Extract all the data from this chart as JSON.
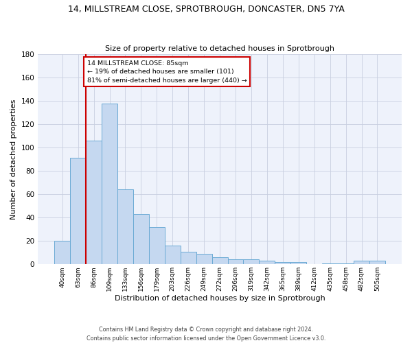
{
  "title_line1": "14, MILLSTREAM CLOSE, SPROTBROUGH, DONCASTER, DN5 7YA",
  "title_line2": "Size of property relative to detached houses in Sprotbrough",
  "xlabel": "Distribution of detached houses by size in Sprotbrough",
  "ylabel": "Number of detached properties",
  "categories": [
    "40sqm",
    "63sqm",
    "86sqm",
    "109sqm",
    "133sqm",
    "156sqm",
    "179sqm",
    "203sqm",
    "226sqm",
    "249sqm",
    "272sqm",
    "296sqm",
    "319sqm",
    "342sqm",
    "365sqm",
    "389sqm",
    "412sqm",
    "435sqm",
    "458sqm",
    "482sqm",
    "505sqm"
  ],
  "values": [
    20,
    91,
    106,
    138,
    64,
    43,
    32,
    16,
    11,
    9,
    6,
    4,
    4,
    3,
    2,
    2,
    0,
    1,
    1,
    3,
    3
  ],
  "bar_color": "#c5d8f0",
  "bar_edge_color": "#6aaad4",
  "subject_bar_index": 2,
  "subject_label": "14 MILLSTREAM CLOSE: 85sqm",
  "annotation_line1": "← 19% of detached houses are smaller (101)",
  "annotation_line2": "81% of semi-detached houses are larger (440) →",
  "annotation_box_color": "#ffffff",
  "annotation_box_edge_color": "#cc0000",
  "subject_line_color": "#cc0000",
  "ylim": [
    0,
    180
  ],
  "yticks": [
    0,
    20,
    40,
    60,
    80,
    100,
    120,
    140,
    160,
    180
  ],
  "footer_line1": "Contains HM Land Registry data © Crown copyright and database right 2024.",
  "footer_line2": "Contains public sector information licensed under the Open Government Licence v3.0.",
  "bg_color": "#eef2fb",
  "grid_color": "#c8cfe0"
}
